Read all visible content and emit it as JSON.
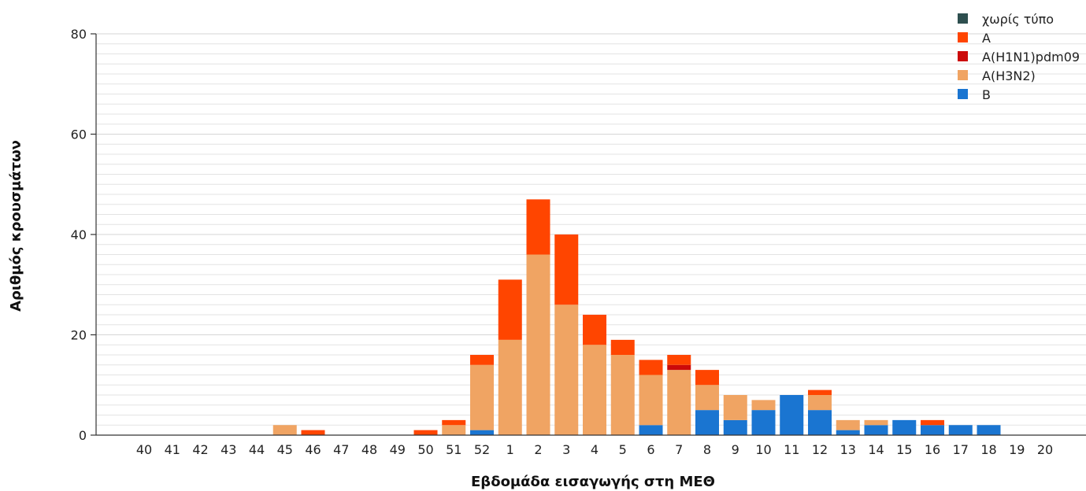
{
  "chart_data": {
    "type": "bar",
    "stacked": true,
    "title": "",
    "xlabel": "Εβδομάδα εισαγωγής στη ΜΕΘ",
    "ylabel": "Αριθμός κρουσμάτων",
    "ylim": [
      0,
      80
    ],
    "yticks": [
      0,
      20,
      40,
      60,
      80
    ],
    "grid": true,
    "legend_position": "top-right",
    "categories": [
      "40",
      "41",
      "42",
      "43",
      "44",
      "45",
      "46",
      "47",
      "48",
      "49",
      "50",
      "51",
      "52",
      "1",
      "2",
      "3",
      "4",
      "5",
      "6",
      "7",
      "8",
      "9",
      "10",
      "11",
      "12",
      "13",
      "14",
      "15",
      "16",
      "17",
      "18",
      "19",
      "20"
    ],
    "series": [
      {
        "name": "B",
        "color": "#1a75d1",
        "values": [
          0,
          0,
          0,
          0,
          0,
          0,
          0,
          0,
          0,
          0,
          0,
          0,
          1,
          0,
          0,
          0,
          0,
          0,
          2,
          0,
          5,
          3,
          5,
          8,
          5,
          1,
          2,
          3,
          2,
          2,
          2,
          0,
          0
        ]
      },
      {
        "name": "A(H3N2)",
        "color": "#f0a463",
        "values": [
          0,
          0,
          0,
          0,
          0,
          2,
          0,
          0,
          0,
          0,
          0,
          2,
          13,
          19,
          36,
          26,
          18,
          16,
          10,
          13,
          5,
          5,
          2,
          0,
          3,
          2,
          1,
          0,
          0,
          0,
          0,
          0,
          0
        ]
      },
      {
        "name": "A(H1N1)pdm09",
        "color": "#cc0a0a",
        "values": [
          0,
          0,
          0,
          0,
          0,
          0,
          0,
          0,
          0,
          0,
          0,
          0,
          0,
          0,
          0,
          0,
          0,
          0,
          0,
          1,
          0,
          0,
          0,
          0,
          0,
          0,
          0,
          0,
          0,
          0,
          0,
          0,
          0
        ]
      },
      {
        "name": "A",
        "color": "#ff4500",
        "values": [
          0,
          0,
          0,
          0,
          0,
          0,
          1,
          0,
          0,
          0,
          1,
          1,
          2,
          12,
          11,
          14,
          6,
          3,
          3,
          2,
          3,
          0,
          0,
          0,
          1,
          0,
          0,
          0,
          1,
          0,
          0,
          0,
          0
        ]
      },
      {
        "name": "χωρίς τύπο",
        "color": "#2e4f4f",
        "values": [
          0,
          0,
          0,
          0,
          0,
          0,
          0,
          0,
          0,
          0,
          0,
          0,
          0,
          0,
          0,
          0,
          0,
          0,
          0,
          0,
          0,
          0,
          0,
          0,
          0,
          0,
          0,
          0,
          0,
          0,
          0,
          0,
          0
        ]
      }
    ],
    "legend_order": [
      "χωρίς τύπο",
      "A",
      "A(H1N1)pdm09",
      "A(H3N2)",
      "B"
    ]
  }
}
